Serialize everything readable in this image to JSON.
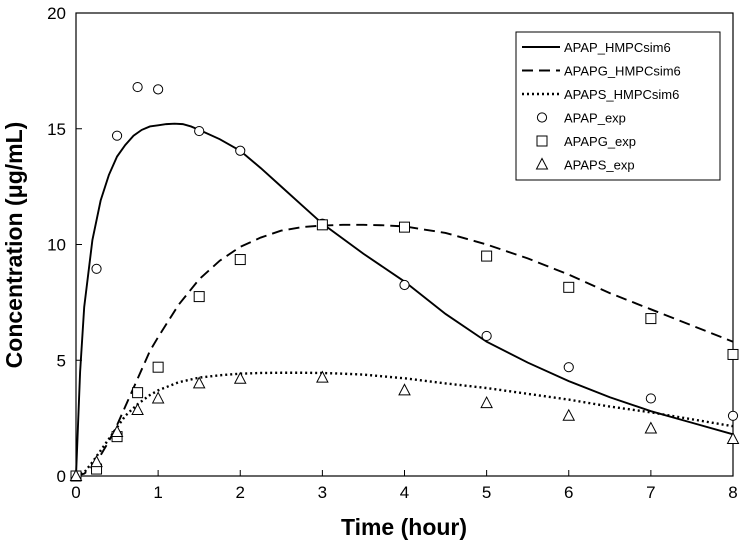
{
  "chart_data": {
    "type": "line",
    "xlabel": "Time (hour)",
    "ylabel": "Concentration (μg/mL)",
    "xlim": [
      0,
      8
    ],
    "ylim": [
      0,
      20
    ],
    "xticks": [
      "0",
      "1",
      "2",
      "3",
      "4",
      "5",
      "6",
      "7",
      "8"
    ],
    "yticks": [
      "0",
      "5",
      "10",
      "15",
      "20"
    ],
    "grid": false,
    "legend_position": "top-right",
    "series": [
      {
        "name": "APAP_HMPCsim6",
        "kind": "line",
        "style": "solid",
        "color": "#000000",
        "x": [
          0,
          0.05,
          0.1,
          0.2,
          0.3,
          0.4,
          0.5,
          0.6,
          0.7,
          0.8,
          0.9,
          1.0,
          1.1,
          1.2,
          1.3,
          1.4,
          1.5,
          1.75,
          2.0,
          2.25,
          2.5,
          2.75,
          3.0,
          3.5,
          4.0,
          4.5,
          5.0,
          5.5,
          6.0,
          6.5,
          7.0,
          7.5,
          8.0
        ],
        "y": [
          0,
          4.5,
          7.3,
          10.2,
          11.9,
          13.0,
          13.8,
          14.3,
          14.7,
          14.95,
          15.1,
          15.15,
          15.2,
          15.22,
          15.2,
          15.1,
          14.95,
          14.55,
          14.05,
          13.3,
          12.5,
          11.7,
          10.9,
          9.6,
          8.4,
          7.0,
          5.8,
          4.9,
          4.1,
          3.4,
          2.8,
          2.3,
          1.8
        ]
      },
      {
        "name": "APAPG_HMPCsim6",
        "kind": "line",
        "style": "dashed",
        "color": "#000000",
        "x": [
          0,
          0.1,
          0.2,
          0.3,
          0.4,
          0.5,
          0.6,
          0.75,
          0.9,
          1.0,
          1.25,
          1.5,
          1.75,
          2.0,
          2.25,
          2.5,
          2.75,
          3.0,
          3.25,
          3.5,
          3.75,
          4.0,
          4.5,
          5.0,
          5.5,
          6.0,
          6.5,
          7.0,
          7.5,
          8.0
        ],
        "y": [
          0,
          0.1,
          0.4,
          0.9,
          1.5,
          2.2,
          3.0,
          4.2,
          5.4,
          6.0,
          7.4,
          8.5,
          9.3,
          9.9,
          10.3,
          10.6,
          10.75,
          10.82,
          10.85,
          10.85,
          10.83,
          10.78,
          10.5,
          10.0,
          9.4,
          8.7,
          7.9,
          7.2,
          6.5,
          5.8
        ]
      },
      {
        "name": "APAPS_HMPCsim6",
        "kind": "line",
        "style": "dotted",
        "color": "#000000",
        "x": [
          0,
          0.1,
          0.2,
          0.3,
          0.4,
          0.5,
          0.6,
          0.75,
          0.9,
          1.0,
          1.25,
          1.5,
          1.75,
          2.0,
          2.25,
          2.5,
          2.75,
          3.0,
          3.25,
          3.5,
          4.0,
          4.5,
          5.0,
          5.5,
          6.0,
          6.5,
          7.0,
          7.5,
          8.0
        ],
        "y": [
          0,
          0.15,
          0.6,
          1.1,
          1.6,
          2.1,
          2.6,
          3.1,
          3.5,
          3.7,
          4.05,
          4.25,
          4.35,
          4.42,
          4.45,
          4.46,
          4.46,
          4.45,
          4.42,
          4.38,
          4.22,
          4.0,
          3.8,
          3.55,
          3.3,
          3.0,
          2.75,
          2.45,
          2.15
        ]
      },
      {
        "name": "APAP_exp",
        "kind": "scatter",
        "marker": "circle",
        "color": "#000000",
        "x": [
          0,
          0.25,
          0.5,
          0.75,
          1.0,
          1.5,
          2.0,
          3.0,
          4.0,
          5.0,
          6.0,
          7.0,
          8.0
        ],
        "y": [
          0,
          8.95,
          14.7,
          16.8,
          16.7,
          14.9,
          14.05,
          10.9,
          8.25,
          6.05,
          4.7,
          3.35,
          2.6
        ]
      },
      {
        "name": "APAPG_exp",
        "kind": "scatter",
        "marker": "square",
        "color": "#000000",
        "x": [
          0,
          0.25,
          0.5,
          0.75,
          1.0,
          1.5,
          2.0,
          3.0,
          4.0,
          5.0,
          6.0,
          7.0,
          8.0
        ],
        "y": [
          0,
          0.3,
          1.7,
          3.6,
          4.7,
          7.75,
          9.35,
          10.85,
          10.75,
          9.5,
          8.15,
          6.8,
          5.25
        ]
      },
      {
        "name": "APAPS_exp",
        "kind": "scatter",
        "marker": "triangle",
        "color": "#000000",
        "x": [
          0,
          0.25,
          0.5,
          0.75,
          1.0,
          1.5,
          2.0,
          3.0,
          4.0,
          5.0,
          6.0,
          7.0,
          8.0
        ],
        "y": [
          0,
          0.6,
          1.9,
          2.85,
          3.35,
          4.0,
          4.2,
          4.25,
          3.7,
          3.15,
          2.6,
          2.05,
          1.6
        ]
      }
    ]
  }
}
